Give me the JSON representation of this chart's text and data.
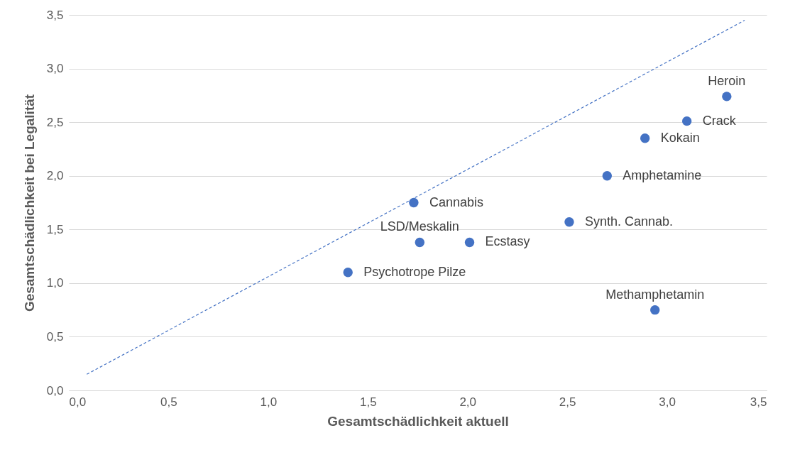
{
  "chart_data": {
    "type": "scatter",
    "xlabel": "Gesamtschädlichkeit aktuell",
    "ylabel": "Gesamtschädlichkeit bei Legalität",
    "xlim": [
      0,
      3.5
    ],
    "ylim": [
      0,
      3.5
    ],
    "xticks": [
      {
        "value": 0,
        "label": "0,0"
      },
      {
        "value": 0.5,
        "label": "0,5"
      },
      {
        "value": 1,
        "label": "1,0"
      },
      {
        "value": 1.5,
        "label": "1,5"
      },
      {
        "value": 2,
        "label": "2,0"
      },
      {
        "value": 2.5,
        "label": "2,5"
      },
      {
        "value": 3,
        "label": "3,0"
      },
      {
        "value": 3.5,
        "label": "3,5"
      }
    ],
    "yticks": [
      {
        "value": 0,
        "label": "0,0"
      },
      {
        "value": 0.5,
        "label": "0,5"
      },
      {
        "value": 1,
        "label": "1,0"
      },
      {
        "value": 1.5,
        "label": "1,5"
      },
      {
        "value": 2,
        "label": "2,0"
      },
      {
        "value": 2.5,
        "label": "2,5"
      },
      {
        "value": 3,
        "label": "3,0"
      },
      {
        "value": 3.5,
        "label": "3,5"
      }
    ],
    "grid": "y",
    "marker": "circle",
    "series": [
      {
        "color": "#4472c4",
        "x": [
          3.3,
          3.1,
          2.89,
          2.7,
          1.73,
          2.51,
          1.76,
          2.01,
          1.4,
          2.94
        ],
        "values": [
          2.74,
          2.51,
          2.35,
          2.0,
          1.75,
          1.57,
          1.38,
          1.38,
          1.1,
          0.75
        ]
      },
      {
        "type": "line",
        "color": "#4472c4",
        "line_style": "dashed",
        "marker": "none",
        "x": [
          0.09,
          3.39
        ],
        "values": [
          0.15,
          3.45
        ]
      }
    ],
    "annotations": [
      {
        "text": "Heroin",
        "x": 3.3,
        "y": 2.74
      },
      {
        "text": "Crack",
        "x": 3.1,
        "y": 2.51
      },
      {
        "text": "Kokain",
        "x": 2.89,
        "y": 2.35
      },
      {
        "text": "Amphetamine",
        "x": 2.7,
        "y": 2.0
      },
      {
        "text": "Cannabis",
        "x": 1.73,
        "y": 1.75
      },
      {
        "text": "Synth. Cannab.",
        "x": 2.51,
        "y": 1.57
      },
      {
        "text": "LSD/Meskalin",
        "x": 1.76,
        "y": 1.38
      },
      {
        "text": "Ecstasy",
        "x": 2.01,
        "y": 1.38
      },
      {
        "text": "Psychotrope Pilze",
        "x": 1.4,
        "y": 1.1
      },
      {
        "text": "Methamphetamin",
        "x": 2.94,
        "y": 0.75
      }
    ]
  }
}
